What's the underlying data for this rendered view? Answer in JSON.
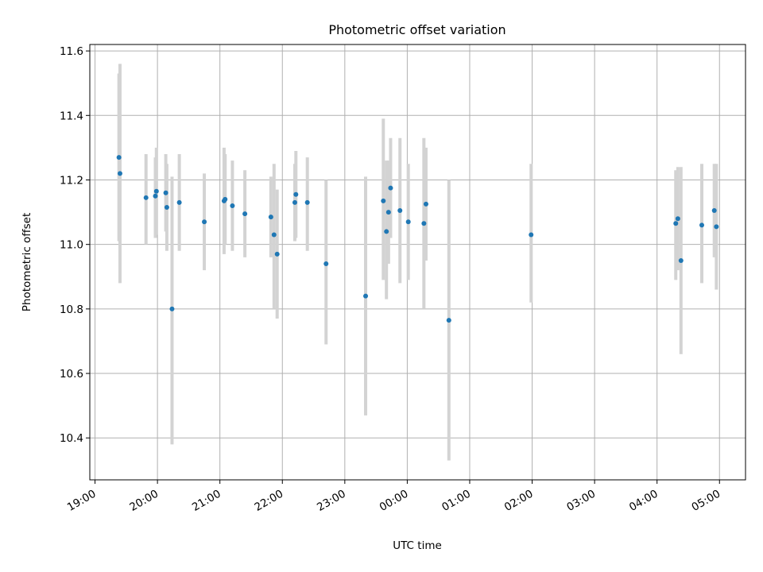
{
  "chart_data": {
    "type": "scatter",
    "title": "Photometric offset variation",
    "xlabel": "UTC time",
    "ylabel": "Photometric offset",
    "x_unit": "UTC time (HH:MM); times after midnight fall on the following day",
    "xlim": [
      "18:55",
      "05:25"
    ],
    "ylim": [
      10.27,
      11.62
    ],
    "xticks": [
      "19:00",
      "20:00",
      "21:00",
      "22:00",
      "23:00",
      "00:00",
      "01:00",
      "02:00",
      "03:00",
      "04:00",
      "05:00"
    ],
    "yticks": [
      "10.4",
      "10.6",
      "10.8",
      "11.0",
      "11.2",
      "11.4",
      "11.6"
    ],
    "grid": true,
    "colors": {
      "points": "#1f77b4",
      "error_bars": "#d3d3d3",
      "grid": "#b0b0b0"
    },
    "series": [
      {
        "points": [
          {
            "x": "19:23",
            "y": 11.27,
            "ylo": 11.01,
            "yhi": 11.53
          },
          {
            "x": "19:24",
            "y": 11.22,
            "ylo": 10.88,
            "yhi": 11.56
          },
          {
            "x": "19:49",
            "y": 11.145,
            "ylo": 11.0,
            "yhi": 11.28
          },
          {
            "x": "19:58",
            "y": 11.15,
            "ylo": 11.02,
            "yhi": 11.27
          },
          {
            "x": "19:59",
            "y": 11.165,
            "ylo": 11.03,
            "yhi": 11.3
          },
          {
            "x": "20:08",
            "y": 11.16,
            "ylo": 11.04,
            "yhi": 11.28
          },
          {
            "x": "20:09",
            "y": 11.115,
            "ylo": 10.98,
            "yhi": 11.25
          },
          {
            "x": "20:14",
            "y": 10.8,
            "ylo": 10.38,
            "yhi": 11.21
          },
          {
            "x": "20:21",
            "y": 11.13,
            "ylo": 10.98,
            "yhi": 11.28
          },
          {
            "x": "20:45",
            "y": 11.07,
            "ylo": 10.92,
            "yhi": 11.22
          },
          {
            "x": "21:04",
            "y": 11.135,
            "ylo": 10.97,
            "yhi": 11.3
          },
          {
            "x": "21:05",
            "y": 11.14,
            "ylo": 11.0,
            "yhi": 11.28
          },
          {
            "x": "21:12",
            "y": 11.12,
            "ylo": 10.98,
            "yhi": 11.26
          },
          {
            "x": "21:24",
            "y": 11.095,
            "ylo": 10.96,
            "yhi": 11.23
          },
          {
            "x": "21:49",
            "y": 11.085,
            "ylo": 10.96,
            "yhi": 11.21
          },
          {
            "x": "21:52",
            "y": 11.03,
            "ylo": 10.8,
            "yhi": 11.25
          },
          {
            "x": "21:55",
            "y": 10.97,
            "ylo": 10.77,
            "yhi": 11.17
          },
          {
            "x": "22:12",
            "y": 11.13,
            "ylo": 11.01,
            "yhi": 11.25
          },
          {
            "x": "22:13",
            "y": 11.155,
            "ylo": 11.02,
            "yhi": 11.29
          },
          {
            "x": "22:24",
            "y": 11.13,
            "ylo": 10.98,
            "yhi": 11.27
          },
          {
            "x": "22:42",
            "y": 10.94,
            "ylo": 10.69,
            "yhi": 11.2
          },
          {
            "x": "23:20",
            "y": 10.84,
            "ylo": 10.47,
            "yhi": 11.21
          },
          {
            "x": "23:37",
            "y": 11.135,
            "ylo": 10.89,
            "yhi": 11.39
          },
          {
            "x": "23:40",
            "y": 11.04,
            "ylo": 10.83,
            "yhi": 11.26
          },
          {
            "x": "23:42",
            "y": 11.1,
            "ylo": 10.94,
            "yhi": 11.26
          },
          {
            "x": "23:44",
            "y": 11.175,
            "ylo": 11.02,
            "yhi": 11.33
          },
          {
            "x": "23:53",
            "y": 11.105,
            "ylo": 10.88,
            "yhi": 11.33
          },
          {
            "x": "00:01",
            "y": 11.07,
            "ylo": 10.89,
            "yhi": 11.25
          },
          {
            "x": "00:16",
            "y": 11.065,
            "ylo": 10.8,
            "yhi": 11.33
          },
          {
            "x": "00:18",
            "y": 11.125,
            "ylo": 10.95,
            "yhi": 11.3
          },
          {
            "x": "00:40",
            "y": 10.765,
            "ylo": 10.33,
            "yhi": 11.2
          },
          {
            "x": "01:59",
            "y": 11.03,
            "ylo": 10.82,
            "yhi": 11.25
          },
          {
            "x": "04:18",
            "y": 11.065,
            "ylo": 10.89,
            "yhi": 11.23
          },
          {
            "x": "04:20",
            "y": 11.08,
            "ylo": 10.92,
            "yhi": 11.24
          },
          {
            "x": "04:23",
            "y": 10.95,
            "ylo": 10.66,
            "yhi": 11.24
          },
          {
            "x": "04:43",
            "y": 11.06,
            "ylo": 10.88,
            "yhi": 11.25
          },
          {
            "x": "04:55",
            "y": 11.105,
            "ylo": 10.96,
            "yhi": 11.25
          },
          {
            "x": "04:57",
            "y": 11.055,
            "ylo": 10.86,
            "yhi": 11.25
          }
        ]
      }
    ]
  }
}
